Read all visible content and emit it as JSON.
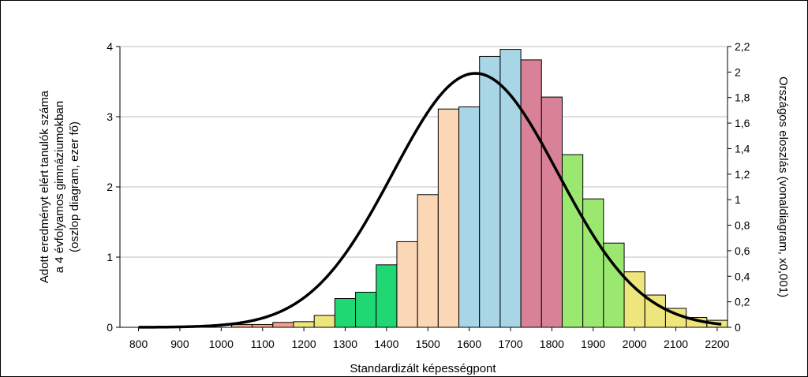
{
  "chart_data": {
    "type": "bar",
    "x": [
      1050,
      1100,
      1150,
      1200,
      1250,
      1300,
      1350,
      1400,
      1450,
      1500,
      1550,
      1600,
      1650,
      1700,
      1750,
      1800,
      1850,
      1900,
      1950,
      2000,
      2050,
      2100,
      2150,
      2200
    ],
    "bar_width": 50,
    "values": [
      0.04,
      0.04,
      0.07,
      0.08,
      0.17,
      0.41,
      0.5,
      0.89,
      1.22,
      1.89,
      3.11,
      3.14,
      3.86,
      3.96,
      3.81,
      3.28,
      2.46,
      1.83,
      1.2,
      0.79,
      0.46,
      0.27,
      0.14,
      0.1
    ],
    "colors": [
      "#F4A08A",
      "#F4A08A",
      "#F4A08A",
      "#EEE57D",
      "#EEE57D",
      "#1FD874",
      "#1FD874",
      "#1FD874",
      "#FCD7B5",
      "#FCD7B5",
      "#FCD7B5",
      "#A8D6E6",
      "#A8D6E6",
      "#A8D6E6",
      "#D98297",
      "#D98297",
      "#9BE871",
      "#9BE871",
      "#9BE871",
      "#EEE57D",
      "#EEE57D",
      "#EEE57D",
      "#EEE57D",
      "#EEE57D"
    ],
    "curve": {
      "mean": 1615,
      "sd": 200,
      "peak": 1.99
    },
    "xlabel": "Standardizált képességpont",
    "ylabel_left": [
      "Adott eredményt elért tanulók száma",
      "a 4 évfolyamos gimnáziumokban",
      "(oszlop diagram, ezer fő)"
    ],
    "ylabel_right": "Országos eloszlás (vonaldiagram, x0,001)",
    "xlim": [
      755,
      2225
    ],
    "ylim_left": [
      0,
      4
    ],
    "ylim_right": [
      0,
      2.2
    ],
    "x_ticks": [
      "800",
      "900",
      "1000",
      "1100",
      "1200",
      "1300",
      "1400",
      "1500",
      "1600",
      "1700",
      "1800",
      "1900",
      "2000",
      "2100",
      "2200"
    ],
    "y_left_ticks": [
      "0",
      "1",
      "2",
      "3",
      "4"
    ],
    "y_right_ticks": [
      "0",
      "0,2",
      "0,4",
      "0,6",
      "0,8",
      "1",
      "1,2",
      "1,4",
      "1,6",
      "1,8",
      "2",
      "2,2"
    ],
    "grid": true,
    "curve_color": "#000000",
    "gridline_color": "#BFBFBF",
    "border_color": "#000000"
  }
}
